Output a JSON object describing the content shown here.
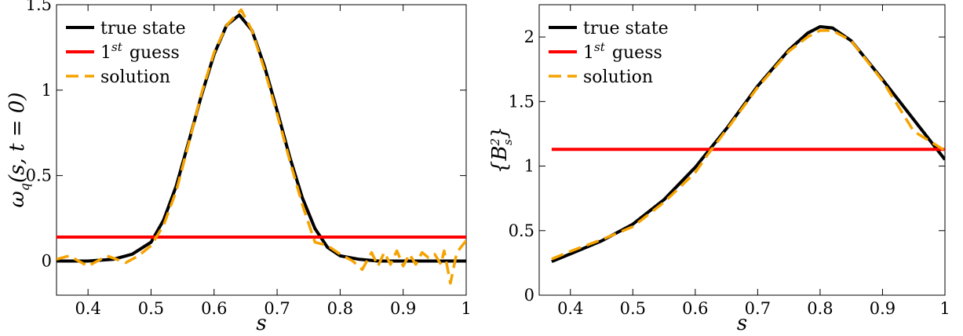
{
  "chart_data": [
    {
      "type": "line",
      "xlabel": "s",
      "ylabel": "ω_q(s, t = 0)",
      "xlim": [
        0.35,
        1.0
      ],
      "ylim": [
        -0.2,
        1.5
      ],
      "xticks": [
        0.4,
        0.5,
        0.6,
        0.7,
        0.8,
        0.9,
        1
      ],
      "xtick_labels": [
        "0.4",
        "0.5",
        "0.6",
        "0.7",
        "0.8",
        "0.9",
        "1"
      ],
      "yticks": [
        0,
        0.5,
        1,
        1.5
      ],
      "ytick_labels": [
        "0",
        "0.5",
        "1",
        "1.5"
      ],
      "grid": false,
      "legend_position": "top-left",
      "series": [
        {
          "name": "true state",
          "color": "#000000",
          "style": "solid",
          "x": [
            0.35,
            0.4,
            0.44,
            0.47,
            0.5,
            0.52,
            0.54,
            0.56,
            0.58,
            0.6,
            0.62,
            0.64,
            0.66,
            0.68,
            0.7,
            0.72,
            0.74,
            0.76,
            0.78,
            0.8,
            0.83,
            0.86,
            0.9,
            1.0
          ],
          "y": [
            0,
            0,
            0.01,
            0.04,
            0.11,
            0.24,
            0.44,
            0.7,
            0.97,
            1.21,
            1.38,
            1.44,
            1.35,
            1.14,
            0.88,
            0.61,
            0.37,
            0.19,
            0.08,
            0.03,
            0.01,
            0,
            0,
            0
          ]
        },
        {
          "name": "1^{st} guess",
          "color": "#ff0000",
          "style": "solid",
          "x": [
            0.35,
            1.0
          ],
          "y": [
            0.14,
            0.14
          ]
        },
        {
          "name": "solution",
          "color": "#f5a300",
          "style": "dashed",
          "x": [
            0.35,
            0.37,
            0.4,
            0.43,
            0.46,
            0.48,
            0.5,
            0.52,
            0.54,
            0.56,
            0.58,
            0.6,
            0.62,
            0.643,
            0.66,
            0.68,
            0.7,
            0.72,
            0.74,
            0.76,
            0.78,
            0.8,
            0.82,
            0.835,
            0.85,
            0.86,
            0.87,
            0.88,
            0.89,
            0.9,
            0.91,
            0.92,
            0.93,
            0.94,
            0.95,
            0.96,
            0.965,
            0.975,
            0.985,
            1.0
          ],
          "y": [
            0.01,
            0.03,
            -0.03,
            0.03,
            -0.01,
            0.03,
            0.09,
            0.21,
            0.41,
            0.69,
            0.98,
            1.22,
            1.38,
            1.47,
            1.35,
            1.12,
            0.86,
            0.59,
            0.33,
            0.11,
            0.09,
            0.04,
            0.0,
            -0.05,
            0.05,
            -0.03,
            0.05,
            -0.02,
            0.06,
            -0.03,
            0.04,
            -0.02,
            0.05,
            0.02,
            0.04,
            -0.02,
            0.06,
            -0.13,
            0.05,
            0.12
          ]
        }
      ]
    },
    {
      "type": "line",
      "xlabel": "s",
      "ylabel": "{B_s^2}",
      "xlim": [
        0.35,
        1.0
      ],
      "ylim": [
        0,
        2.25
      ],
      "xticks": [
        0.4,
        0.5,
        0.6,
        0.7,
        0.8,
        0.9,
        1
      ],
      "xtick_labels": [
        "0.4",
        "0.5",
        "0.6",
        "0.7",
        "0.8",
        "0.9",
        "1"
      ],
      "yticks": [
        0,
        0.5,
        1,
        1.5,
        2
      ],
      "ytick_labels": [
        "0",
        "0.5",
        "1",
        "1.5",
        "2"
      ],
      "grid": false,
      "legend_position": "top-left",
      "series": [
        {
          "name": "true state",
          "color": "#000000",
          "style": "solid",
          "x": [
            0.37,
            0.4,
            0.45,
            0.5,
            0.55,
            0.6,
            0.65,
            0.7,
            0.75,
            0.78,
            0.8,
            0.82,
            0.85,
            0.9,
            0.95,
            1.0
          ],
          "y": [
            0.26,
            0.32,
            0.42,
            0.55,
            0.74,
            0.99,
            1.29,
            1.62,
            1.9,
            2.03,
            2.08,
            2.07,
            1.97,
            1.67,
            1.36,
            1.05
          ]
        },
        {
          "name": "1^{st} guess",
          "color": "#ff0000",
          "style": "solid",
          "x": [
            0.37,
            1.0
          ],
          "y": [
            1.13,
            1.13
          ]
        },
        {
          "name": "solution",
          "color": "#f5a300",
          "style": "dashed",
          "x": [
            0.37,
            0.4,
            0.45,
            0.5,
            0.55,
            0.6,
            0.62,
            0.65,
            0.7,
            0.75,
            0.78,
            0.8,
            0.82,
            0.85,
            0.9,
            0.95,
            1.0
          ],
          "y": [
            0.28,
            0.34,
            0.43,
            0.53,
            0.72,
            0.95,
            1.09,
            1.28,
            1.61,
            1.89,
            2.0,
            2.05,
            2.05,
            1.97,
            1.66,
            1.27,
            1.12
          ]
        }
      ]
    }
  ]
}
